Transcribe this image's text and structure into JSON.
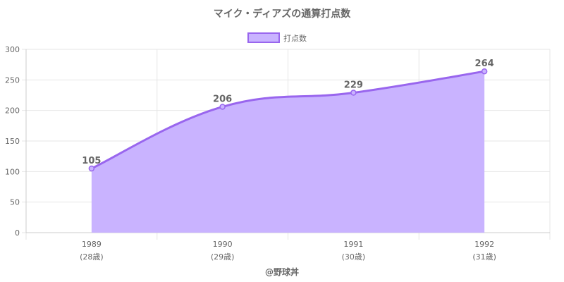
{
  "chart_data": {
    "type": "area",
    "title": "マイク・ディアズの通算打点数",
    "legend": {
      "label": "打点数",
      "placement": "top"
    },
    "categories": [
      "1989",
      "1990",
      "1991",
      "1992"
    ],
    "category_sublabels": [
      "(28歳)",
      "(29歳)",
      "(30歳)",
      "(31歳)"
    ],
    "series": [
      {
        "name": "打点数",
        "values": [
          105,
          206,
          229,
          264
        ]
      }
    ],
    "data_labels": [
      "105",
      "206",
      "229",
      "264"
    ],
    "ylim": [
      0,
      300
    ],
    "yticks": [
      "0",
      "50",
      "100",
      "150",
      "200",
      "250",
      "300"
    ],
    "grid": true,
    "xlabel": "",
    "ylabel": "",
    "colors": {
      "fill": "#c9b3ff",
      "line": "#9966ee",
      "grid": "#e6e6e6",
      "text": "#666666"
    }
  },
  "credit": "@野球丼"
}
